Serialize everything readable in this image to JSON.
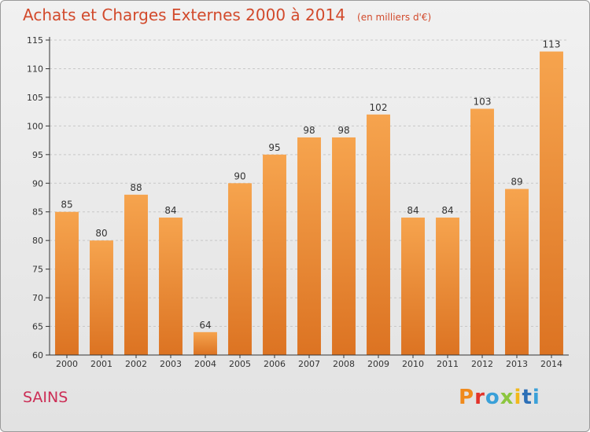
{
  "header": {
    "title": "Achats et Charges Externes 2000 à 2014",
    "subtitle": "(en milliers d'€)"
  },
  "footer": {
    "place": "SAINS",
    "brand": "Proxiti",
    "brand_colors": [
      "#f08a1c",
      "#e2332a",
      "#3aa0d8",
      "#8cc63f",
      "#f2b81b",
      "#2c6fb7",
      "#3aa0d8"
    ]
  },
  "colors": {
    "bar_top": "#f6a44e",
    "bar_bottom": "#dc7322",
    "grid": "#c8c8c8",
    "axis": "#333333"
  },
  "chart_data": {
    "type": "bar",
    "title": "Achats et Charges Externes 2000 à 2014",
    "subtitle": "(en milliers d'€)",
    "categories": [
      "2000",
      "2001",
      "2002",
      "2003",
      "2004",
      "2005",
      "2006",
      "2007",
      "2008",
      "2009",
      "2010",
      "2011",
      "2012",
      "2013",
      "2014"
    ],
    "values": [
      85,
      80,
      88,
      84,
      64,
      90,
      95,
      98,
      98,
      102,
      84,
      84,
      103,
      89,
      113
    ],
    "ylim": [
      60,
      115
    ],
    "yticks": [
      60,
      65,
      70,
      75,
      80,
      85,
      90,
      95,
      100,
      105,
      110,
      115
    ],
    "grid": true,
    "data_labels": true,
    "xlabel": "",
    "ylabel": ""
  }
}
